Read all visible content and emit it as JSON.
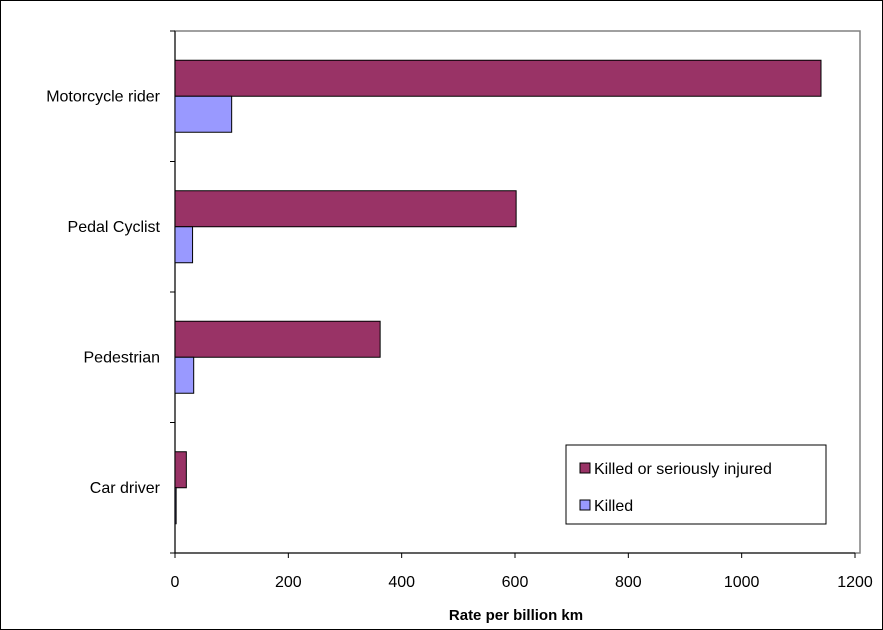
{
  "chart_data": {
    "type": "bar",
    "orientation": "horizontal",
    "categories": [
      "Motorcycle rider",
      "Pedal Cyclist",
      "Pedestrian",
      "Car driver"
    ],
    "series": [
      {
        "name": "Killed or seriously injured",
        "color": "#993366",
        "values": [
          1140,
          602,
          362,
          20
        ]
      },
      {
        "name": "Killed",
        "color": "#9999ff",
        "values": [
          100,
          31,
          33,
          2
        ]
      }
    ],
    "xlabel": "Rate per billion km",
    "ylabel": "",
    "xlim": [
      0,
      1200
    ],
    "xticks": [
      "0",
      "200",
      "400",
      "600",
      "800",
      "1000",
      "1200"
    ],
    "grid": false,
    "legend_position": "bottom-right"
  }
}
